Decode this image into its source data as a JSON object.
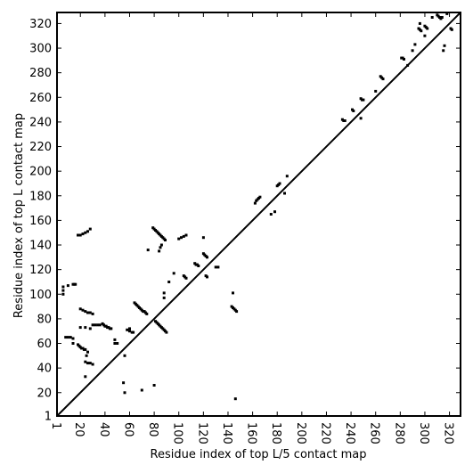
{
  "chart_data": {
    "type": "scatter",
    "title": "",
    "xlabel": "Residue index of top L/5 contact map",
    "ylabel": "Residue index of top L contact map",
    "xlim": [
      1,
      329
    ],
    "ylim": [
      1,
      329
    ],
    "xticks": [
      1,
      20,
      40,
      60,
      80,
      100,
      120,
      140,
      160,
      180,
      200,
      220,
      240,
      260,
      280,
      300,
      320
    ],
    "yticks": [
      1,
      20,
      40,
      60,
      80,
      100,
      120,
      140,
      160,
      180,
      200,
      220,
      240,
      260,
      280,
      300,
      320
    ],
    "grid": false,
    "diagonal": true,
    "series": [
      {
        "marker_color": "#000000",
        "points": [
          [
            81,
            78
          ],
          [
            82,
            77
          ],
          [
            83,
            76
          ],
          [
            84,
            75
          ],
          [
            85,
            74
          ],
          [
            86,
            73
          ],
          [
            87,
            72
          ],
          [
            88,
            71
          ],
          [
            89,
            70
          ],
          [
            90,
            69
          ],
          [
            64,
            93
          ],
          [
            65,
            92
          ],
          [
            66,
            91
          ],
          [
            67,
            90
          ],
          [
            68,
            89
          ],
          [
            69,
            88
          ],
          [
            70,
            87
          ],
          [
            71,
            86
          ],
          [
            72,
            86
          ],
          [
            73,
            85
          ],
          [
            74,
            84
          ],
          [
            79,
            154
          ],
          [
            80,
            153
          ],
          [
            81,
            152
          ],
          [
            82,
            151
          ],
          [
            83,
            150
          ],
          [
            84,
            149
          ],
          [
            85,
            148
          ],
          [
            86,
            147
          ],
          [
            87,
            146
          ],
          [
            88,
            145
          ],
          [
            89,
            144
          ],
          [
            38,
            76
          ],
          [
            39,
            75
          ],
          [
            40,
            74
          ],
          [
            41,
            74
          ],
          [
            42,
            73
          ],
          [
            43,
            73
          ],
          [
            44,
            72
          ],
          [
            45,
            72
          ],
          [
            18,
            59
          ],
          [
            19,
            58
          ],
          [
            20,
            57
          ],
          [
            21,
            56
          ],
          [
            22,
            56
          ],
          [
            23,
            55
          ],
          [
            24,
            55
          ],
          [
            14,
            108
          ],
          [
            15,
            108
          ],
          [
            16,
            108
          ],
          [
            18,
            148
          ],
          [
            20,
            148
          ],
          [
            22,
            149
          ],
          [
            24,
            150
          ],
          [
            26,
            151
          ],
          [
            28,
            153
          ],
          [
            113,
            125
          ],
          [
            114,
            124
          ],
          [
            115,
            124
          ],
          [
            116,
            123
          ],
          [
            120,
            133
          ],
          [
            121,
            132
          ],
          [
            122,
            131
          ],
          [
            123,
            130
          ],
          [
            104,
            115
          ],
          [
            105,
            114
          ],
          [
            106,
            113
          ],
          [
            122,
            115
          ],
          [
            123,
            114
          ],
          [
            143,
            90
          ],
          [
            144,
            89
          ],
          [
            145,
            88
          ],
          [
            146,
            87
          ],
          [
            147,
            86
          ],
          [
            163,
            176
          ],
          [
            164,
            177
          ],
          [
            165,
            178
          ],
          [
            166,
            179
          ],
          [
            180,
            188
          ],
          [
            181,
            189
          ],
          [
            182,
            190
          ],
          [
            233,
            242
          ],
          [
            234,
            241
          ],
          [
            235,
            241
          ],
          [
            241,
            250
          ],
          [
            242,
            249
          ],
          [
            248,
            259
          ],
          [
            249,
            258
          ],
          [
            250,
            258
          ],
          [
            264,
            277
          ],
          [
            265,
            276
          ],
          [
            266,
            275
          ],
          [
            281,
            292
          ],
          [
            282,
            292
          ],
          [
            283,
            291
          ],
          [
            295,
            316
          ],
          [
            296,
            315
          ],
          [
            297,
            314
          ],
          [
            300,
            318
          ],
          [
            301,
            317
          ],
          [
            302,
            316
          ],
          [
            310,
            327
          ],
          [
            311,
            326
          ],
          [
            312,
            325
          ],
          [
            313,
            324
          ],
          [
            314,
            325
          ],
          [
            321,
            316
          ],
          [
            322,
            315
          ],
          [
            58,
            71
          ],
          [
            60,
            70
          ],
          [
            62,
            69
          ],
          [
            63,
            69
          ],
          [
            8,
            65
          ],
          [
            10,
            65
          ],
          [
            12,
            65
          ],
          [
            14,
            64
          ],
          [
            6,
            100
          ],
          [
            6,
            103
          ],
          [
            6,
            106
          ],
          [
            10,
            107
          ],
          [
            14,
            60
          ],
          [
            20,
            88
          ],
          [
            22,
            87
          ],
          [
            24,
            86
          ],
          [
            26,
            85
          ],
          [
            28,
            85
          ],
          [
            30,
            84
          ],
          [
            24,
            45
          ],
          [
            26,
            44
          ],
          [
            28,
            44
          ],
          [
            30,
            43
          ],
          [
            24,
            33
          ],
          [
            25,
            50
          ],
          [
            26,
            53
          ],
          [
            30,
            75
          ],
          [
            32,
            75
          ],
          [
            34,
            75
          ],
          [
            36,
            75
          ],
          [
            20,
            73
          ],
          [
            24,
            73
          ],
          [
            28,
            72
          ],
          [
            48,
            60
          ],
          [
            50,
            60
          ],
          [
            48,
            63
          ],
          [
            56,
            20
          ],
          [
            55,
            28
          ],
          [
            56,
            50
          ],
          [
            60,
            72
          ],
          [
            84,
            135
          ],
          [
            85,
            138
          ],
          [
            86,
            140
          ],
          [
            88,
            97
          ],
          [
            88,
            101
          ],
          [
            92,
            110
          ],
          [
            96,
            117
          ],
          [
            100,
            145
          ],
          [
            102,
            146
          ],
          [
            104,
            147
          ],
          [
            106,
            148
          ],
          [
            120,
            146
          ],
          [
            75,
            136
          ],
          [
            80,
            26
          ],
          [
            70,
            22
          ],
          [
            130,
            122
          ],
          [
            132,
            122
          ],
          [
            144,
            101
          ],
          [
            146,
            15
          ],
          [
            162,
            174
          ],
          [
            175,
            165
          ],
          [
            178,
            167
          ],
          [
            186,
            182
          ],
          [
            188,
            196
          ],
          [
            248,
            243
          ],
          [
            286,
            286
          ],
          [
            306,
            325
          ],
          [
            318,
            328
          ],
          [
            315,
            298
          ],
          [
            316,
            302
          ],
          [
            290,
            298
          ],
          [
            292,
            303
          ],
          [
            260,
            265
          ],
          [
            296,
            320
          ],
          [
            300,
            310
          ]
        ]
      }
    ]
  }
}
